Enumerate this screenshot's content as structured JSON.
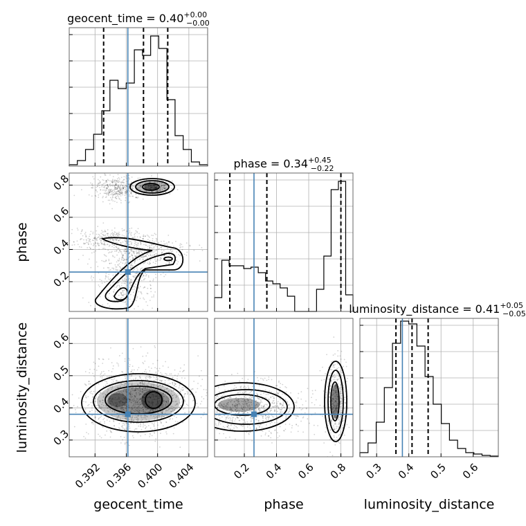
{
  "chart_data": {
    "type": "corner",
    "parameters": [
      "geocent_time",
      "phase",
      "luminosity_distance"
    ],
    "axis_labels": [
      "geocent_time",
      "phase",
      "luminosity_distance"
    ],
    "ranges": [
      [
        0.3887,
        0.4064
      ],
      [
        0.015,
        0.875
      ],
      [
        0.248,
        0.678
      ]
    ],
    "ticks": [
      {
        "values": [
          0.392,
          0.396,
          0.4,
          0.404
        ],
        "labels": [
          "0.392",
          "0.396",
          "0.400",
          "0.404"
        ]
      },
      {
        "values": [
          0.2,
          0.4,
          0.6,
          0.8
        ],
        "labels": [
          "0.2",
          "0.4",
          "0.6",
          "0.8"
        ]
      },
      {
        "values": [
          0.3,
          0.4,
          0.5,
          0.6
        ],
        "labels": [
          "0.3",
          "0.4",
          "0.5",
          "0.6"
        ]
      }
    ],
    "titles": [
      {
        "text": "geocent_time = 0.40",
        "sup": "+0.00",
        "sub": "−0.00"
      },
      {
        "text": "phase = 0.34",
        "sup": "+0.45",
        "sub": "−0.22"
      },
      {
        "text": "luminosity_distance = 0.41",
        "sup": "+0.05",
        "sub": "−0.05"
      }
    ],
    "quantiles": [
      [
        0.3931,
        0.3982,
        0.4013
      ],
      [
        0.11,
        0.34,
        0.8
      ],
      [
        0.36,
        0.41,
        0.46
      ]
    ],
    "truths": [
      0.3962,
      0.26,
      0.38
    ],
    "histograms": [
      {
        "counts": [
          0.01,
          0.04,
          0.12,
          0.23,
          0.4,
          0.62,
          0.56,
          0.6,
          0.84,
          0.8,
          0.94,
          0.85,
          0.48,
          0.22,
          0.12,
          0.03,
          0.01
        ]
      },
      {
        "counts": [
          0.1,
          0.37,
          0.33,
          0.33,
          0.31,
          0.32,
          0.28,
          0.22,
          0.2,
          0.17,
          0.11,
          0.0,
          0.0,
          0.0,
          0.16,
          0.4,
          0.88,
          0.94,
          0.12
        ]
      },
      {
        "counts": [
          0.03,
          0.1,
          0.25,
          0.5,
          0.82,
          0.98,
          0.96,
          0.8,
          0.58,
          0.38,
          0.24,
          0.12,
          0.06,
          0.03,
          0.02,
          0.01,
          0.005
        ]
      }
    ],
    "accent_color": "#4682b4",
    "grid": true
  }
}
